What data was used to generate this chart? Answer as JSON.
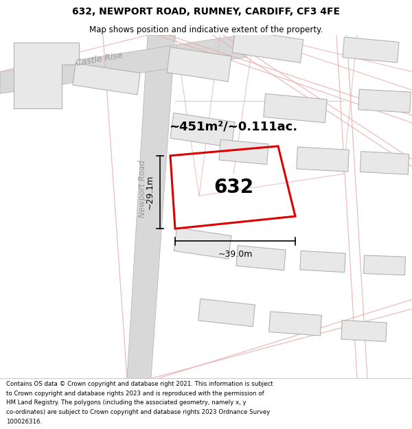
{
  "title_line1": "632, NEWPORT ROAD, RUMNEY, CARDIFF, CF3 4FE",
  "title_line2": "Map shows position and indicative extent of the property.",
  "footer_lines": [
    "Contains OS data © Crown copyright and database right 2021. This information is subject",
    "to Crown copyright and database rights 2023 and is reproduced with the permission of",
    "HM Land Registry. The polygons (including the associated geometry, namely x, y",
    "co-ordinates) are subject to Crown copyright and database rights 2023 Ordnance Survey",
    "100026316."
  ],
  "area_label": "~451m²/~0.111ac.",
  "plot_number": "632",
  "dim_width": "~39.0m",
  "dim_height": "~29.1m",
  "map_bg": "#ffffff",
  "road_fill": "#d8d8d8",
  "road_outline": "#b0b0b0",
  "pink_road": "#e8b0b0",
  "building_fill": "#e8e8e8",
  "building_edge": "#aaaaaa",
  "prop_color": "#dd0000",
  "street_label_castle": "Castle Rise",
  "street_label_newport": "Newport Road",
  "title_fontsize": 10,
  "subtitle_fontsize": 8.5,
  "footer_fontsize": 6.2
}
